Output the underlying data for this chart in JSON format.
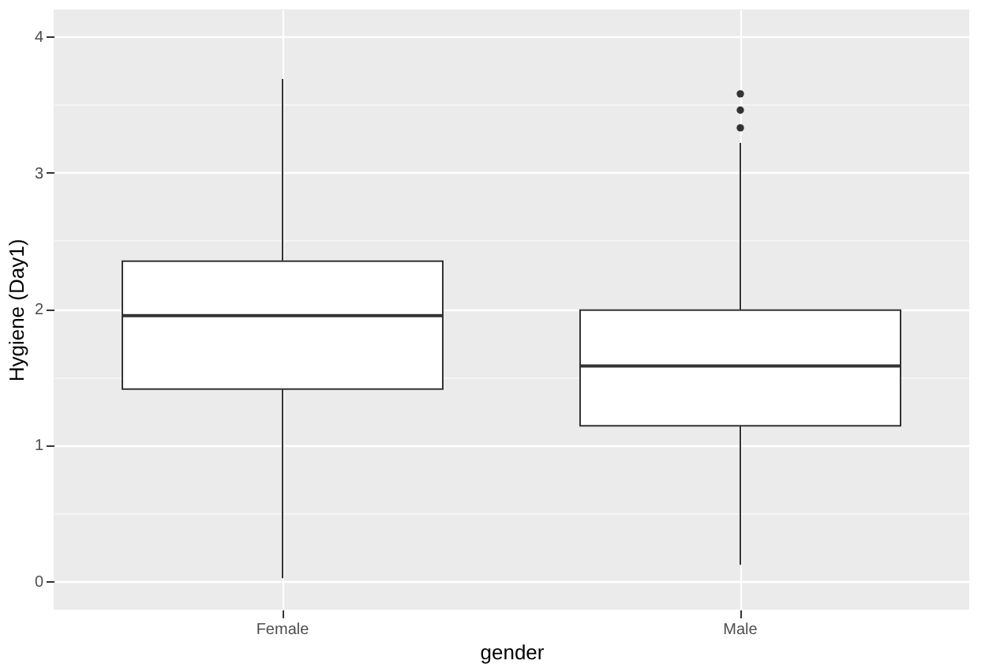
{
  "chart_data": {
    "type": "box",
    "xlabel": "gender",
    "ylabel": "Hygiene (Day1)",
    "categories": [
      "Female",
      "Male"
    ],
    "boxes": [
      {
        "low": 0.02,
        "q1": 1.41,
        "median": 1.95,
        "q3": 2.35,
        "high": 3.69
      },
      {
        "low": 0.12,
        "q1": 1.14,
        "median": 1.58,
        "q3": 1.99,
        "high": 3.22,
        "outliers": [
          3.33,
          3.46,
          3.58
        ]
      }
    ],
    "ylim": [
      -0.21,
      4.2
    ],
    "yticks": [
      0,
      {
        "value": 0.5,
        "label": null
      },
      1,
      {
        "value": 1.5,
        "label": null
      },
      2,
      {
        "value": 2.5,
        "label": null
      },
      3,
      {
        "value": 3.5,
        "label": null
      },
      4
    ],
    "grid": true
  }
}
